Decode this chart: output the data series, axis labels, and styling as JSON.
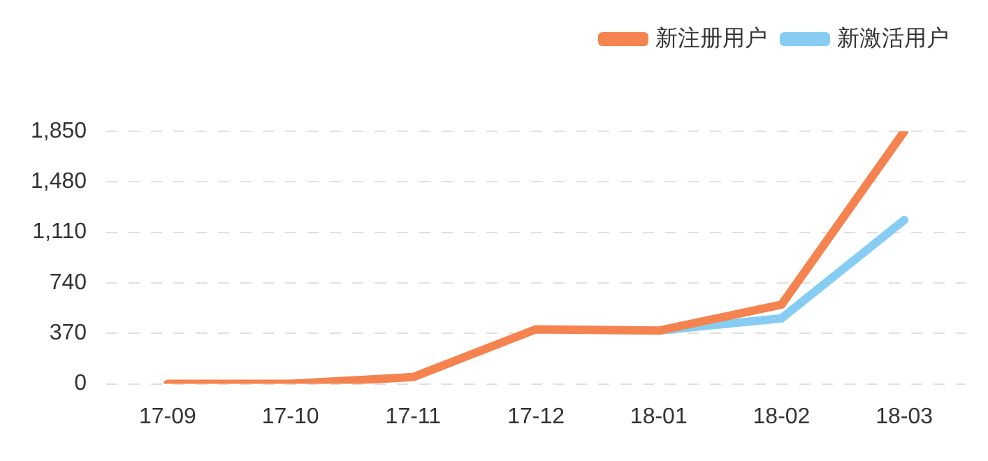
{
  "chart_data": {
    "type": "line",
    "categories": [
      "17-09",
      "17-10",
      "17-11",
      "17-12",
      "18-01",
      "18-02",
      "18-03"
    ],
    "series": [
      {
        "name": "新注册用户",
        "color": "#f5834f",
        "values": [
          0,
          0,
          50,
          400,
          390,
          580,
          1850
        ]
      },
      {
        "name": "新激活用户",
        "color": "#87cdf3",
        "values": [
          null,
          null,
          null,
          null,
          390,
          480,
          1200
        ]
      }
    ],
    "ylim": [
      0,
      1850
    ],
    "yticks": [
      0,
      370,
      740,
      {
        "value": 1110,
        "label": "1,110"
      },
      {
        "value": 1480,
        "label": "1,480"
      },
      {
        "value": 1850,
        "label": "1,850"
      }
    ],
    "grid": "y",
    "legend": "top right",
    "marker": "none",
    "line_style": "solid"
  }
}
